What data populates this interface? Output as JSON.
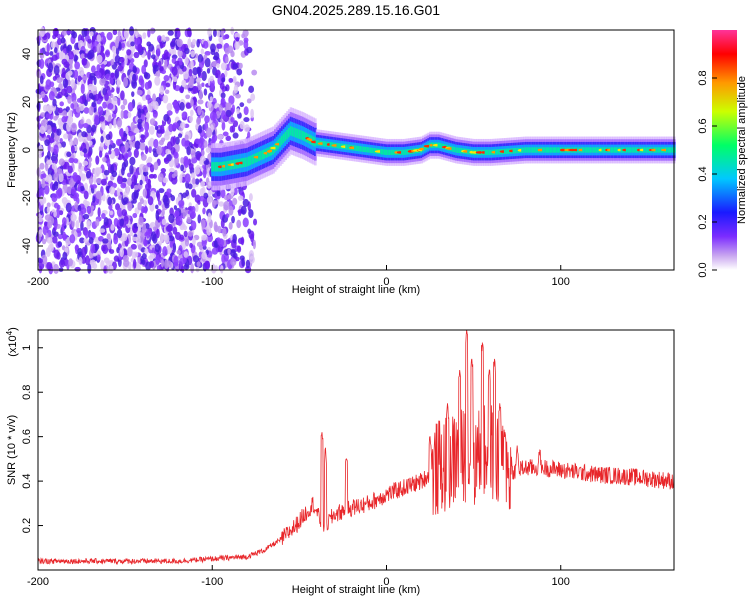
{
  "title": "GN04.2025.289.15.16.G01",
  "chart_data": [
    {
      "type": "heatmap",
      "xlabel": "Height of straight line (km)",
      "ylabel": "Frequency (Hz)",
      "xlim": [
        -200,
        165
      ],
      "ylim": [
        -50,
        50
      ],
      "xticks": [
        -200,
        -100,
        0,
        100
      ],
      "yticks": [
        -40,
        -20,
        0,
        20,
        40
      ],
      "grid": false,
      "colorbar": {
        "label": "Normalized spectral amplitude",
        "range": [
          0,
          1
        ],
        "ticks": [
          0.0,
          0.2,
          0.4,
          0.6,
          0.8
        ],
        "colors": [
          "#ffffff",
          "#c9a6f0",
          "#7b2cff",
          "#1a1aff",
          "#00c8ff",
          "#00ff66",
          "#ccff00",
          "#ff9900",
          "#ff0000",
          "#ff3399"
        ]
      },
      "ridge": {
        "x": [
          -95,
          -80,
          -65,
          -55,
          -48,
          -40,
          -30,
          -20,
          -10,
          0,
          10,
          20,
          25,
          30,
          40,
          50,
          60,
          80,
          100,
          130,
          165
        ],
        "freq": [
          -7,
          -5,
          0,
          8,
          6,
          3,
          2,
          1,
          0,
          -1,
          -1,
          0,
          2,
          2,
          0,
          -1,
          -1,
          0,
          0,
          0,
          0
        ]
      }
    },
    {
      "type": "line",
      "xlabel": "Height of straight line (km)",
      "ylabel": "SNR (10 * v/v)",
      "scale_label": "(x10",
      "scale_exp": "4",
      "scale_close": ")",
      "xlim": [
        -200,
        165
      ],
      "ylim": [
        0,
        1.08
      ],
      "xticks": [
        -200,
        -100,
        0,
        100
      ],
      "yticks": [
        0.2,
        0.4,
        0.6,
        0.8,
        1
      ],
      "color": "#e8262a",
      "envelope": {
        "x": [
          -200,
          -120,
          -100,
          -80,
          -70,
          -60,
          -52,
          -46,
          -42,
          -38,
          -35,
          -30,
          -20,
          -10,
          0,
          10,
          20,
          28,
          32,
          40,
          45,
          50,
          55,
          60,
          65,
          70,
          75,
          80,
          90,
          100,
          120,
          140,
          165
        ],
        "y": [
          0.04,
          0.04,
          0.05,
          0.06,
          0.09,
          0.14,
          0.2,
          0.26,
          0.3,
          0.22,
          0.2,
          0.25,
          0.28,
          0.3,
          0.34,
          0.37,
          0.4,
          0.45,
          0.47,
          0.5,
          0.52,
          0.5,
          0.52,
          0.54,
          0.48,
          0.44,
          0.45,
          0.46,
          0.46,
          0.45,
          0.43,
          0.42,
          0.4
        ]
      },
      "spikes": [
        {
          "x": -37,
          "y": 0.62
        },
        {
          "x": -35,
          "y": 0.55
        },
        {
          "x": -23,
          "y": 0.5
        },
        {
          "x": 25,
          "y": 0.6
        },
        {
          "x": 35,
          "y": 0.75
        },
        {
          "x": 42,
          "y": 0.9
        },
        {
          "x": 46,
          "y": 1.08
        },
        {
          "x": 49,
          "y": 0.95
        },
        {
          "x": 55,
          "y": 1.02
        },
        {
          "x": 59,
          "y": 0.9
        },
        {
          "x": 62,
          "y": 0.95
        },
        {
          "x": 65,
          "y": 0.75
        },
        {
          "x": 68,
          "y": 0.62
        },
        {
          "x": 75,
          "y": 0.56
        },
        {
          "x": 88,
          "y": 0.54
        }
      ]
    }
  ]
}
